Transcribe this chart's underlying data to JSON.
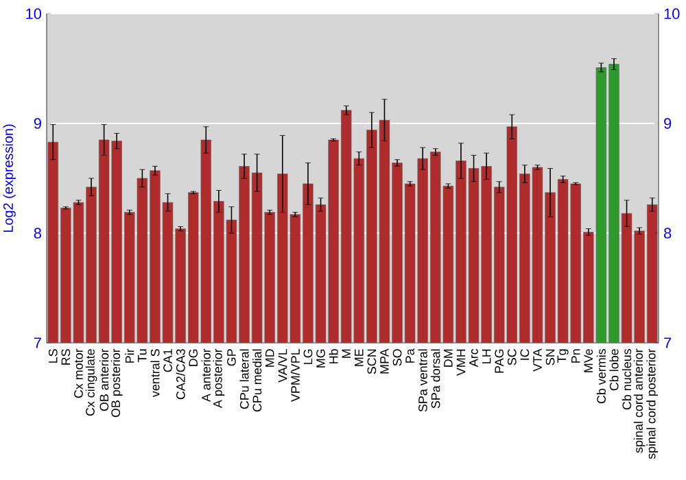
{
  "chart_data": {
    "type": "bar",
    "ylabel": "Log2 (expression)",
    "categories": [
      "LS",
      "RS",
      "Cx motor",
      "Cx cingulate",
      "OB anterior",
      "OB posterior",
      "Pir",
      "Tu",
      "ventral S",
      "CA1",
      "CA2/CA3",
      "DG",
      "A anterior",
      "A posterior",
      "GP",
      "CPu lateral",
      "CPu medial",
      "MD",
      "VA/VL",
      "VPM/VPL",
      "LG",
      "MG",
      "Hb",
      "M",
      "ME",
      "SCN",
      "MPA",
      "SO",
      "Pa",
      "SPa ventral",
      "SPa dorsal",
      "DM",
      "VMH",
      "Arc",
      "LH",
      "PAG",
      "SC",
      "IC",
      "VTA",
      "SN",
      "Tg",
      "Pn",
      "MVe",
      "Cb vermis",
      "Cb lobe",
      "Cb nucleus",
      "spinal cord anterior",
      "spinal cord posterior"
    ],
    "values": [
      8.83,
      8.23,
      8.28,
      8.42,
      8.85,
      8.84,
      8.19,
      8.5,
      8.57,
      8.28,
      8.04,
      8.37,
      8.85,
      8.29,
      8.12,
      8.61,
      8.55,
      8.19,
      8.54,
      8.17,
      8.45,
      8.26,
      8.85,
      9.12,
      8.68,
      8.94,
      9.03,
      8.64,
      8.45,
      8.68,
      8.74,
      8.43,
      8.66,
      8.59,
      8.61,
      8.42,
      8.97,
      8.54,
      8.6,
      8.37,
      8.49,
      8.45,
      8.01,
      9.51,
      9.54,
      8.18,
      8.02,
      8.26
    ],
    "errors": [
      0.16,
      0.01,
      0.02,
      0.08,
      0.14,
      0.07,
      0.02,
      0.08,
      0.04,
      0.08,
      0.02,
      0.01,
      0.12,
      0.1,
      0.12,
      0.11,
      0.17,
      0.02,
      0.35,
      0.02,
      0.19,
      0.06,
      0.01,
      0.04,
      0.06,
      0.16,
      0.19,
      0.03,
      0.02,
      0.1,
      0.03,
      0.02,
      0.16,
      0.12,
      0.12,
      0.05,
      0.11,
      0.08,
      0.02,
      0.22,
      0.03,
      0.01,
      0.03,
      0.04,
      0.05,
      0.12,
      0.03,
      0.06
    ],
    "colors": [
      "#b02c2c",
      "#b02c2c",
      "#b02c2c",
      "#b02c2c",
      "#b02c2c",
      "#b02c2c",
      "#b02c2c",
      "#b02c2c",
      "#b02c2c",
      "#b02c2c",
      "#b02c2c",
      "#b02c2c",
      "#b02c2c",
      "#b02c2c",
      "#b02c2c",
      "#b02c2c",
      "#b02c2c",
      "#b02c2c",
      "#b02c2c",
      "#b02c2c",
      "#b02c2c",
      "#b02c2c",
      "#b02c2c",
      "#b02c2c",
      "#b02c2c",
      "#b02c2c",
      "#b02c2c",
      "#b02c2c",
      "#b02c2c",
      "#b02c2c",
      "#b02c2c",
      "#b02c2c",
      "#b02c2c",
      "#b02c2c",
      "#b02c2c",
      "#b02c2c",
      "#b02c2c",
      "#b02c2c",
      "#b02c2c",
      "#b02c2c",
      "#b02c2c",
      "#b02c2c",
      "#b02c2c",
      "#2e9a2e",
      "#2e9a2e",
      "#b02c2c",
      "#b02c2c",
      "#b02c2c"
    ],
    "ylim": [
      7,
      10
    ],
    "yticks": [
      7,
      8,
      9,
      10
    ],
    "y2lim": [
      7,
      10
    ],
    "y2ticks": [
      7,
      8,
      9,
      10
    ],
    "grid": "y"
  }
}
